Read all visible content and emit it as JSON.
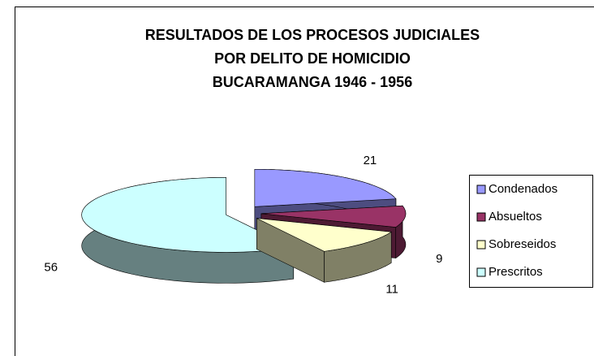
{
  "chart_data": {
    "type": "pie",
    "title": [
      "RESULTADOS DE LOS PROCESOS JUDICIALES",
      "POR DELITO DE HOMICIDIO",
      "BUCARAMANGA 1946 - 1956"
    ],
    "categories": [
      "Condenados",
      "Absueltos",
      "Sobreseidos",
      "Prescritos"
    ],
    "values": [
      21,
      9,
      11,
      56
    ],
    "colors": [
      "#9999ff",
      "#993366",
      "#ffffcc",
      "#ccffff"
    ],
    "legend": "right"
  }
}
